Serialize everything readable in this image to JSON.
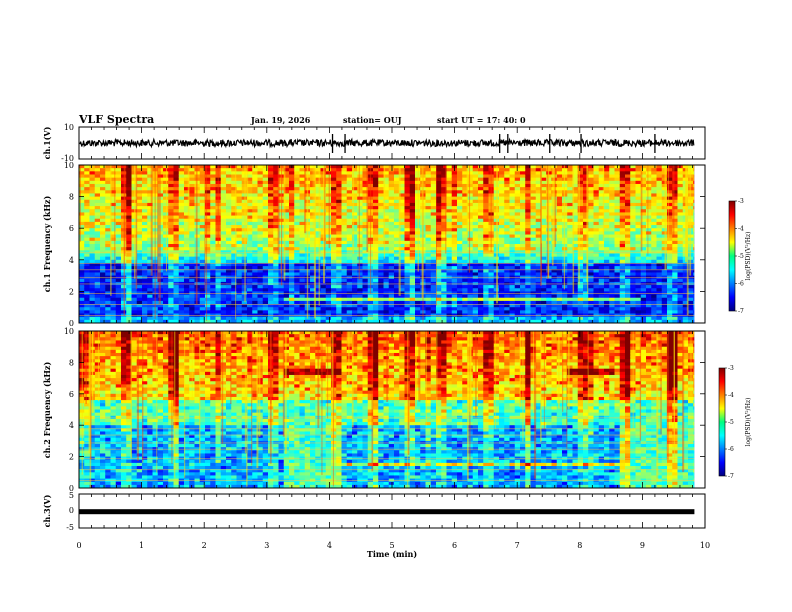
{
  "header": {
    "title": "VLF Spectra",
    "date": "Jan. 19, 2026",
    "station": "station= OUJ",
    "start": "start  UT =   17: 40: 0"
  },
  "chart_data": [
    {
      "type": "line",
      "name": "ch1-waveform",
      "ylabel": "ch.1(V)",
      "ylim": [
        -10,
        10
      ],
      "yticks": [
        "10",
        "-10"
      ],
      "xlim": [
        0,
        10
      ],
      "x_end_data": 9.83
    },
    {
      "type": "heatmap",
      "name": "ch1-spectrogram",
      "ylabel": "ch.1 Frequency  (kHz)",
      "ylim": [
        0,
        10
      ],
      "yticks": [
        "0",
        "2",
        "4",
        "6",
        "8",
        "10"
      ],
      "xlim": [
        0,
        10
      ],
      "colorbar": {
        "label": "log(PSD)(V²/Hz)",
        "range": [
          -7,
          -3
        ],
        "ticks": [
          "-3",
          "-4",
          "-5",
          "-6",
          "-7"
        ]
      }
    },
    {
      "type": "heatmap",
      "name": "ch2-spectrogram",
      "ylabel": "ch.2 Frequency  (kHz)",
      "ylim": [
        0,
        10
      ],
      "yticks": [
        "0",
        "2",
        "4",
        "6",
        "8",
        "10"
      ],
      "xlim": [
        0,
        10
      ],
      "colorbar": {
        "label": "log(PSD)(V²/Hz)",
        "range": [
          -7,
          -3
        ],
        "ticks": [
          "-3",
          "-4",
          "-5",
          "-6",
          "-7"
        ]
      }
    },
    {
      "type": "line",
      "name": "ch3-signal",
      "ylabel": "ch.3(V)",
      "ylim": [
        -5,
        5
      ],
      "yticks": [
        "5",
        "0",
        "-5"
      ],
      "value": -0.2,
      "xlim": [
        0,
        10
      ]
    }
  ],
  "xaxis": {
    "label": "Time  (min)",
    "ticks": [
      "0",
      "1",
      "2",
      "3",
      "4",
      "5",
      "6",
      "7",
      "8",
      "9",
      "10"
    ]
  }
}
